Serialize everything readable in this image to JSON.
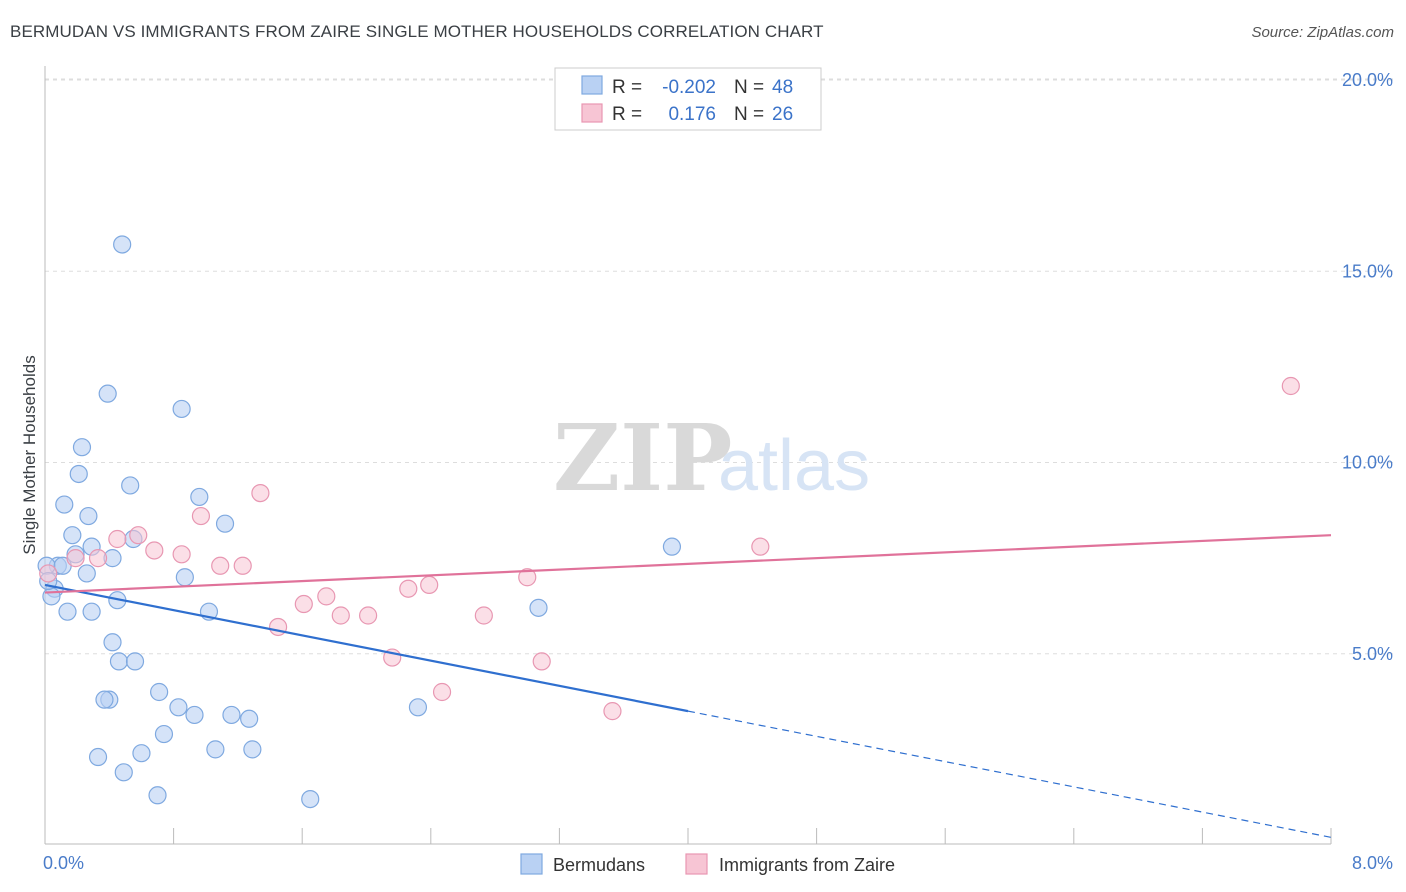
{
  "title": "BERMUDAN VS IMMIGRANTS FROM ZAIRE SINGLE MOTHER HOUSEHOLDS CORRELATION CHART",
  "source": "Source: ZipAtlas.com",
  "watermark": {
    "zip": "ZIP",
    "atlas": "atlas"
  },
  "colors": {
    "blue_fill": "#b9d1f3",
    "blue_stroke": "#7fa9e0",
    "blue_line": "#2f6fcf",
    "pink_fill": "#f7c5d4",
    "pink_stroke": "#e897b2",
    "pink_line": "#e0729a",
    "grid": "#dddddd",
    "tick": "#4a7cc9"
  },
  "legend": {
    "r_label": "R =",
    "n_label": "N =",
    "rows": [
      {
        "r": "-0.202",
        "n": "48"
      },
      {
        "r": "0.176",
        "n": "26"
      }
    ]
  },
  "chart_data": {
    "type": "scatter",
    "title": "BERMUDAN VS IMMIGRANTS FROM ZAIRE SINGLE MOTHER HOUSEHOLDS CORRELATION CHART",
    "xlabel": "",
    "ylabel": "Single Mother Households",
    "xlim": [
      0,
      8
    ],
    "ylim": [
      0,
      20
    ],
    "x_ticks": [
      0,
      0.8,
      1.6,
      2.4,
      3.2,
      4.0,
      4.8,
      5.6,
      6.4,
      7.2,
      8.0
    ],
    "x_tick_labels": {
      "left": "0.0%",
      "right": "8.0%"
    },
    "y_ticks": [
      5,
      10,
      15,
      20
    ],
    "y_tick_labels": [
      "5.0%",
      "10.0%",
      "15.0%",
      "20.0%"
    ],
    "series": [
      {
        "name": "Bermudans",
        "r": -0.202,
        "n": 48,
        "trend": {
          "x0": 0.0,
          "y0": 6.8,
          "x1": 4.0,
          "y1": 3.5,
          "dash_to_x": 8.0,
          "dash_to_y": 0.2
        },
        "points": [
          [
            0.48,
            15.7
          ],
          [
            0.39,
            11.8
          ],
          [
            0.85,
            11.4
          ],
          [
            0.23,
            10.4
          ],
          [
            0.21,
            9.7
          ],
          [
            0.53,
            9.4
          ],
          [
            0.12,
            8.9
          ],
          [
            0.96,
            9.1
          ],
          [
            0.27,
            8.6
          ],
          [
            1.12,
            8.4
          ],
          [
            0.17,
            8.1
          ],
          [
            0.29,
            7.8
          ],
          [
            0.55,
            8.0
          ],
          [
            0.42,
            7.5
          ],
          [
            0.08,
            7.3
          ],
          [
            0.01,
            7.3
          ],
          [
            0.26,
            7.1
          ],
          [
            0.87,
            7.0
          ],
          [
            0.06,
            6.7
          ],
          [
            0.04,
            6.5
          ],
          [
            0.45,
            6.4
          ],
          [
            0.14,
            6.1
          ],
          [
            0.29,
            6.1
          ],
          [
            1.02,
            6.1
          ],
          [
            0.42,
            5.3
          ],
          [
            0.46,
            4.8
          ],
          [
            0.56,
            4.8
          ],
          [
            0.4,
            3.8
          ],
          [
            0.37,
            3.8
          ],
          [
            0.71,
            4.0
          ],
          [
            0.83,
            3.6
          ],
          [
            0.93,
            3.4
          ],
          [
            1.16,
            3.4
          ],
          [
            1.27,
            3.3
          ],
          [
            0.74,
            2.9
          ],
          [
            1.06,
            2.5
          ],
          [
            1.29,
            2.5
          ],
          [
            0.33,
            2.3
          ],
          [
            0.6,
            2.4
          ],
          [
            0.49,
            1.9
          ],
          [
            0.7,
            1.3
          ],
          [
            1.65,
            1.2
          ],
          [
            2.32,
            3.6
          ],
          [
            3.07,
            6.2
          ],
          [
            3.9,
            7.8
          ],
          [
            0.19,
            7.6
          ],
          [
            0.11,
            7.3
          ],
          [
            0.02,
            6.9
          ]
        ]
      },
      {
        "name": "Immigrants from Zaire",
        "r": 0.176,
        "n": 26,
        "trend": {
          "x0": 0.0,
          "y0": 6.6,
          "x1": 8.0,
          "y1": 8.1
        },
        "points": [
          [
            0.02,
            7.1
          ],
          [
            0.19,
            7.5
          ],
          [
            0.33,
            7.5
          ],
          [
            0.45,
            8.0
          ],
          [
            0.58,
            8.1
          ],
          [
            0.68,
            7.7
          ],
          [
            0.85,
            7.6
          ],
          [
            0.97,
            8.6
          ],
          [
            1.09,
            7.3
          ],
          [
            1.23,
            7.3
          ],
          [
            1.34,
            9.2
          ],
          [
            1.45,
            5.7
          ],
          [
            1.61,
            6.3
          ],
          [
            1.75,
            6.5
          ],
          [
            1.84,
            6.0
          ],
          [
            2.01,
            6.0
          ],
          [
            2.16,
            4.9
          ],
          [
            2.26,
            6.7
          ],
          [
            2.39,
            6.8
          ],
          [
            2.47,
            4.0
          ],
          [
            2.73,
            6.0
          ],
          [
            3.0,
            7.0
          ],
          [
            3.09,
            4.8
          ],
          [
            3.53,
            3.5
          ],
          [
            4.45,
            7.8
          ],
          [
            7.75,
            12.0
          ]
        ]
      }
    ]
  },
  "bottom_legend": [
    "Bermudans",
    "Immigrants from Zaire"
  ]
}
